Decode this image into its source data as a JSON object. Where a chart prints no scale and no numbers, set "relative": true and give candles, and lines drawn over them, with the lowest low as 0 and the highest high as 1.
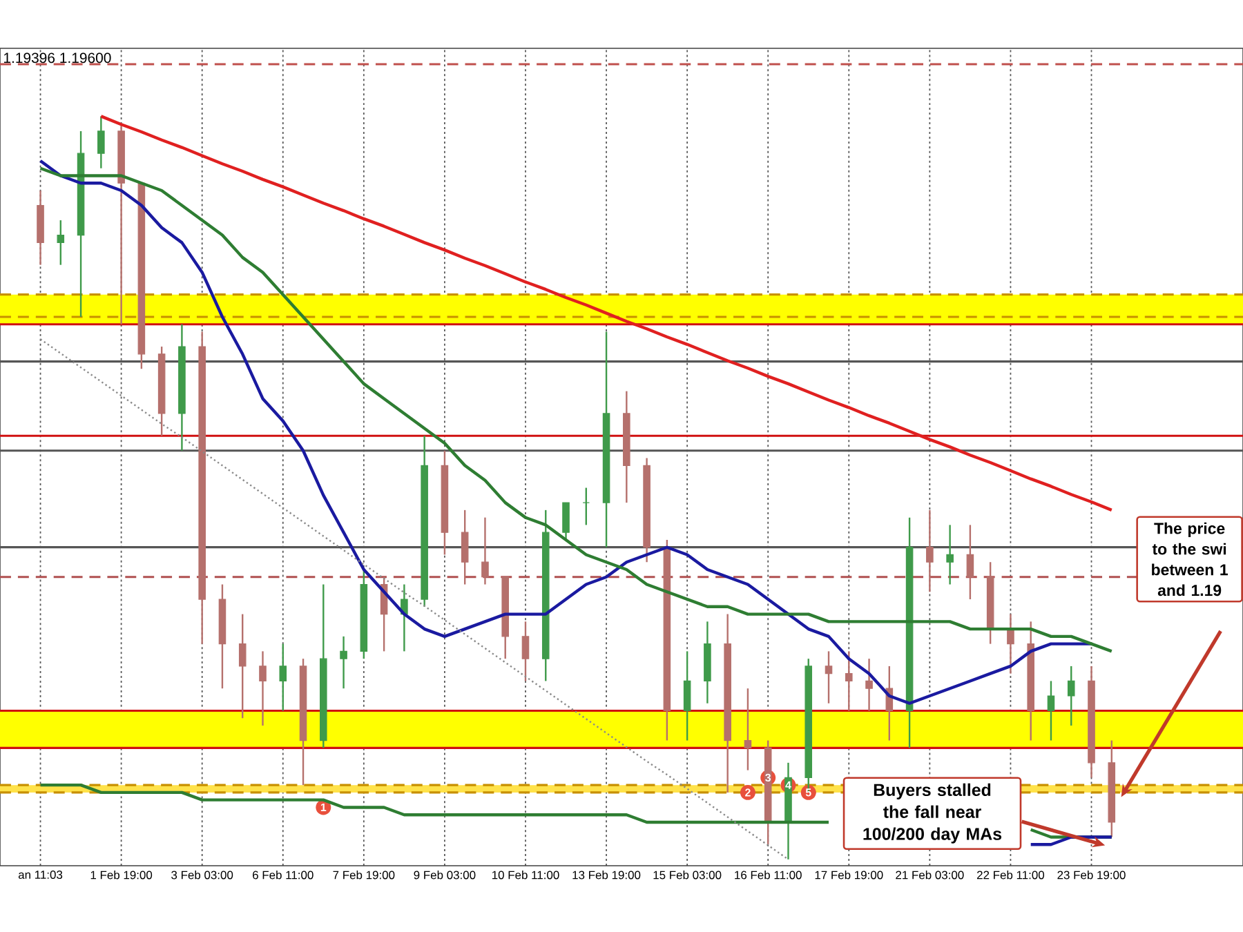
{
  "chart_data": {
    "type": "candlestick",
    "relative": true,
    "grid": "x",
    "categories": [
      "an 11:03",
      null,
      null,
      null,
      "1 Feb 19:00",
      null,
      null,
      null,
      "3 Feb 03:00",
      null,
      null,
      null,
      "6 Feb 11:00",
      null,
      null,
      null,
      "7 Feb 19:00",
      null,
      null,
      null,
      "9 Feb 03:00",
      null,
      null,
      null,
      "10 Feb 11:00",
      null,
      null,
      null,
      "13 Feb 19:00",
      null,
      null,
      null,
      "15 Feb 03:00",
      null,
      null,
      null,
      "16 Feb 11:00",
      null,
      null,
      null,
      "17 Feb 19:00",
      null,
      null,
      null,
      "21 Feb 03:00",
      null,
      null,
      null,
      "22 Feb 11:00",
      null,
      null,
      null,
      "23 Feb 19:00",
      null
    ],
    "ohlc": [
      [
        0.88,
        0.9,
        0.8,
        0.83
      ],
      [
        0.83,
        0.86,
        0.8,
        0.84
      ],
      [
        0.84,
        0.98,
        0.73,
        0.95
      ],
      [
        0.95,
        1.0,
        0.93,
        0.98
      ],
      [
        0.98,
        0.99,
        0.72,
        0.91
      ],
      [
        0.91,
        0.91,
        0.66,
        0.68
      ],
      [
        0.68,
        0.69,
        0.57,
        0.6
      ],
      [
        0.6,
        0.72,
        0.55,
        0.69
      ],
      [
        0.69,
        0.71,
        0.29,
        0.35
      ],
      [
        0.35,
        0.37,
        0.23,
        0.29
      ],
      [
        0.29,
        0.33,
        0.19,
        0.26
      ],
      [
        0.26,
        0.28,
        0.18,
        0.24
      ],
      [
        0.24,
        0.29,
        0.2,
        0.26
      ],
      [
        0.26,
        0.27,
        0.1,
        0.16
      ],
      [
        0.16,
        0.37,
        0.15,
        0.27
      ],
      [
        0.27,
        0.3,
        0.23,
        0.28
      ],
      [
        0.28,
        0.39,
        0.27,
        0.37
      ],
      [
        0.37,
        0.38,
        0.28,
        0.33
      ],
      [
        0.33,
        0.37,
        0.28,
        0.35
      ],
      [
        0.35,
        0.57,
        0.34,
        0.53
      ],
      [
        0.53,
        0.55,
        0.41,
        0.44
      ],
      [
        0.44,
        0.47,
        0.37,
        0.4
      ],
      [
        0.4,
        0.46,
        0.37,
        0.38
      ],
      [
        0.38,
        0.38,
        0.27,
        0.3
      ],
      [
        0.3,
        0.32,
        0.24,
        0.27
      ],
      [
        0.27,
        0.47,
        0.24,
        0.44
      ],
      [
        0.44,
        0.48,
        0.43,
        0.48
      ],
      [
        0.48,
        0.5,
        0.45,
        0.48
      ],
      [
        0.48,
        0.71,
        0.42,
        0.6
      ],
      [
        0.6,
        0.63,
        0.48,
        0.53
      ],
      [
        0.53,
        0.54,
        0.4,
        0.42
      ],
      [
        0.42,
        0.43,
        0.16,
        0.2
      ],
      [
        0.2,
        0.28,
        0.16,
        0.24
      ],
      [
        0.24,
        0.32,
        0.21,
        0.29
      ],
      [
        0.29,
        0.33,
        0.09,
        0.16
      ],
      [
        0.16,
        0.23,
        0.12,
        0.15
      ],
      [
        0.15,
        0.16,
        0.02,
        0.05
      ],
      [
        0.05,
        0.13,
        0.0,
        0.11
      ],
      [
        0.11,
        0.27,
        0.09,
        0.26
      ],
      [
        0.26,
        0.28,
        0.21,
        0.25
      ],
      [
        0.25,
        0.28,
        0.2,
        0.24
      ],
      [
        0.24,
        0.27,
        0.2,
        0.23
      ],
      [
        0.23,
        0.26,
        0.16,
        0.2
      ],
      [
        0.2,
        0.46,
        0.15,
        0.42
      ],
      [
        0.42,
        0.47,
        0.36,
        0.4
      ],
      [
        0.4,
        0.45,
        0.37,
        0.41
      ],
      [
        0.41,
        0.45,
        0.35,
        0.38
      ],
      [
        0.38,
        0.4,
        0.29,
        0.31
      ],
      [
        0.31,
        0.33,
        0.25,
        0.29
      ],
      [
        0.29,
        0.32,
        0.16,
        0.2
      ],
      [
        0.2,
        0.24,
        0.16,
        0.22
      ],
      [
        0.22,
        0.26,
        0.18,
        0.24
      ],
      [
        0.24,
        0.26,
        0.11,
        0.13
      ],
      [
        0.13,
        0.16,
        0.03,
        0.05
      ]
    ],
    "colors": [
      "#b5706c",
      "#3f9a4a",
      "#3f9a4a",
      "#3f9a4a",
      "#b5706c",
      "#b5706c",
      "#b5706c",
      "#3f9a4a",
      "#b5706c",
      "#b5706c",
      "#b5706c",
      "#b5706c",
      "#3f9a4a",
      "#b5706c",
      "#3f9a4a",
      "#3f9a4a",
      "#3f9a4a",
      "#b5706c",
      "#3f9a4a",
      "#3f9a4a",
      "#b5706c",
      "#b5706c",
      "#b5706c",
      "#b5706c",
      "#b5706c",
      "#3f9a4a",
      "#3f9a4a",
      "#3f9a4a",
      "#3f9a4a",
      "#b5706c",
      "#b5706c",
      "#b5706c",
      "#3f9a4a",
      "#3f9a4a",
      "#b5706c",
      "#b5706c",
      "#b5706c",
      "#3f9a4a",
      "#3f9a4a",
      "#b5706c",
      "#b5706c",
      "#b5706c",
      "#b5706c",
      "#3f9a4a",
      "#b5706c",
      "#3f9a4a",
      "#b5706c",
      "#b5706c",
      "#b5706c",
      "#b5706c",
      "#3f9a4a",
      "#3f9a4a",
      "#b5706c",
      "#b5706c"
    ],
    "series": [
      {
        "type": "line",
        "color": "#1a1aa0",
        "values": [
          0.94,
          0.92,
          0.91,
          0.91,
          0.9,
          0.88,
          0.85,
          0.83,
          0.79,
          0.73,
          0.68,
          0.62,
          0.59,
          0.55,
          0.49,
          0.44,
          0.39,
          0.36,
          0.33,
          0.31,
          0.3,
          0.31,
          0.32,
          0.33,
          0.33,
          0.33,
          0.35,
          0.37,
          0.38,
          0.4,
          0.41,
          0.42,
          0.41,
          0.39,
          0.38,
          0.37,
          0.35,
          0.33,
          0.31,
          0.3,
          0.27,
          0.25,
          0.22,
          0.21,
          0.22,
          0.23,
          0.24,
          0.25,
          0.26,
          0.28,
          0.29,
          0.29,
          0.29,
          null
        ]
      },
      {
        "type": "line",
        "color": "#2e7d32",
        "values": [
          0.93,
          0.92,
          0.92,
          0.92,
          0.92,
          0.91,
          0.9,
          0.88,
          0.86,
          0.84,
          0.81,
          0.79,
          0.76,
          0.73,
          0.7,
          0.67,
          0.64,
          0.62,
          0.6,
          0.58,
          0.56,
          0.53,
          0.51,
          0.48,
          0.46,
          0.45,
          0.43,
          0.41,
          0.4,
          0.39,
          0.37,
          0.36,
          0.35,
          0.34,
          0.34,
          0.33,
          0.33,
          0.33,
          0.33,
          0.32,
          0.32,
          0.32,
          0.32,
          0.32,
          0.32,
          0.32,
          0.31,
          0.31,
          0.31,
          0.31,
          0.3,
          0.3,
          0.29,
          0.28
        ]
      },
      {
        "type": "line",
        "color": "#2e7d32",
        "values": [
          0.1,
          0.1,
          0.1,
          0.09,
          0.09,
          0.09,
          0.09,
          0.09,
          0.08,
          0.08,
          0.08,
          0.08,
          0.08,
          0.08,
          0.08,
          0.07,
          0.07,
          0.07,
          0.06,
          0.06,
          0.06,
          0.06,
          0.06,
          0.06,
          0.06,
          0.06,
          0.06,
          0.06,
          0.06,
          0.06,
          0.05,
          0.05,
          0.05,
          0.05,
          0.05,
          0.05,
          0.05,
          0.05,
          0.05,
          0.05,
          null,
          null,
          null,
          null,
          null,
          null,
          null,
          null,
          null,
          0.04,
          0.03,
          0.03,
          0.03,
          0.03
        ]
      },
      {
        "type": "line",
        "color": "#1a1aa0",
        "values": [
          null,
          null,
          null,
          null,
          null,
          null,
          null,
          null,
          null,
          null,
          null,
          null,
          null,
          null,
          null,
          null,
          null,
          null,
          null,
          null,
          null,
          null,
          null,
          null,
          null,
          null,
          null,
          null,
          null,
          null,
          null,
          null,
          null,
          null,
          null,
          null,
          null,
          null,
          null,
          null,
          null,
          null,
          null,
          null,
          null,
          null,
          null,
          null,
          null,
          0.02,
          0.02,
          0.03,
          0.03,
          0.03
        ]
      },
      {
        "type": "line",
        "color": "#e02020",
        "values": [
          null,
          null,
          null,
          1.0,
          0.989,
          0.979,
          0.968,
          0.958,
          0.947,
          0.936,
          0.926,
          0.915,
          0.905,
          0.894,
          0.883,
          0.873,
          0.862,
          0.852,
          0.841,
          0.83,
          0.82,
          0.809,
          0.799,
          0.788,
          0.777,
          0.767,
          0.756,
          0.746,
          0.735,
          0.724,
          0.714,
          0.703,
          0.693,
          0.682,
          0.671,
          0.661,
          0.65,
          0.64,
          0.629,
          0.618,
          0.608,
          0.597,
          0.587,
          0.576,
          0.565,
          0.555,
          0.544,
          0.534,
          0.523,
          0.512,
          0.502,
          0.491,
          0.481,
          0.47
        ]
      },
      {
        "type": "line",
        "color": "#8a8a8a",
        "line_style": "dotted",
        "values": [
          0.7,
          0.681,
          0.662,
          0.643,
          0.624,
          0.605,
          0.586,
          0.568,
          0.549,
          0.53,
          0.511,
          0.492,
          0.473,
          0.454,
          0.435,
          0.416,
          0.397,
          0.378,
          0.359,
          0.341,
          0.322,
          0.303,
          0.284,
          0.265,
          0.246,
          0.227,
          0.208,
          0.189,
          0.17,
          0.151,
          0.132,
          0.114,
          0.095,
          0.076,
          0.057,
          0.038,
          0.019,
          0.0,
          null,
          null,
          null,
          null,
          null,
          null,
          null,
          null,
          null,
          null,
          null,
          null,
          null,
          null,
          null,
          null
        ]
      },
      {
        "type": "scatter",
        "color": "#e8503c",
        "marker": "circle",
        "values": [
          null,
          null,
          null,
          null,
          null,
          null,
          null,
          null,
          null,
          null,
          null,
          null,
          null,
          null,
          0.07,
          null,
          null,
          null,
          null,
          null,
          null,
          null,
          null,
          null,
          null,
          null,
          null,
          null,
          null,
          null,
          null,
          null,
          null,
          null,
          null,
          0.09,
          0.11,
          0.1,
          0.09,
          null,
          null,
          null,
          null,
          null,
          null,
          null,
          null,
          null,
          null,
          null,
          null,
          null,
          null,
          null
        ]
      }
    ],
    "bands": [
      {
        "axis": "y",
        "from": 0.72,
        "to": 0.76,
        "color": "#ffff00"
      },
      {
        "axis": "y",
        "from": 0.15,
        "to": 0.2,
        "color": "#ffff00"
      },
      {
        "axis": "y",
        "from": 0.09,
        "to": 0.1,
        "color": "#ffe24a"
      }
    ],
    "ref_lines": [
      {
        "axis": "y",
        "value": 1.07,
        "color": "#c0504d",
        "line_style": "dashed"
      },
      {
        "axis": "y",
        "value": 0.76,
        "color": "#c89000",
        "line_style": "dashed"
      },
      {
        "axis": "y",
        "value": 0.73,
        "color": "#c89000",
        "line_style": "dashed"
      },
      {
        "axis": "y",
        "value": 0.72,
        "color": "#d01010"
      },
      {
        "axis": "y",
        "value": 0.67,
        "color": "#555555"
      },
      {
        "axis": "y",
        "value": 0.57,
        "color": "#d01010"
      },
      {
        "axis": "y",
        "value": 0.55,
        "color": "#555555"
      },
      {
        "axis": "y",
        "value": 0.42,
        "color": "#555555"
      },
      {
        "axis": "y",
        "value": 0.38,
        "color": "#b05050",
        "line_style": "dashed"
      },
      {
        "axis": "y",
        "value": 0.2,
        "color": "#d01010"
      },
      {
        "axis": "y",
        "value": 0.15,
        "color": "#d01010"
      },
      {
        "axis": "y",
        "value": 0.1,
        "color": "#c89000",
        "line_style": "dashed"
      },
      {
        "axis": "y",
        "value": 0.09,
        "color": "#c89000",
        "line_style": "dashed"
      }
    ],
    "annotations": [
      "1.19396 1.19600",
      "The price to the swi between 1 and 1.19",
      "Buyers stalled the fall near 100/200 day MAs",
      "1",
      "2",
      "3",
      "4",
      "5"
    ]
  }
}
